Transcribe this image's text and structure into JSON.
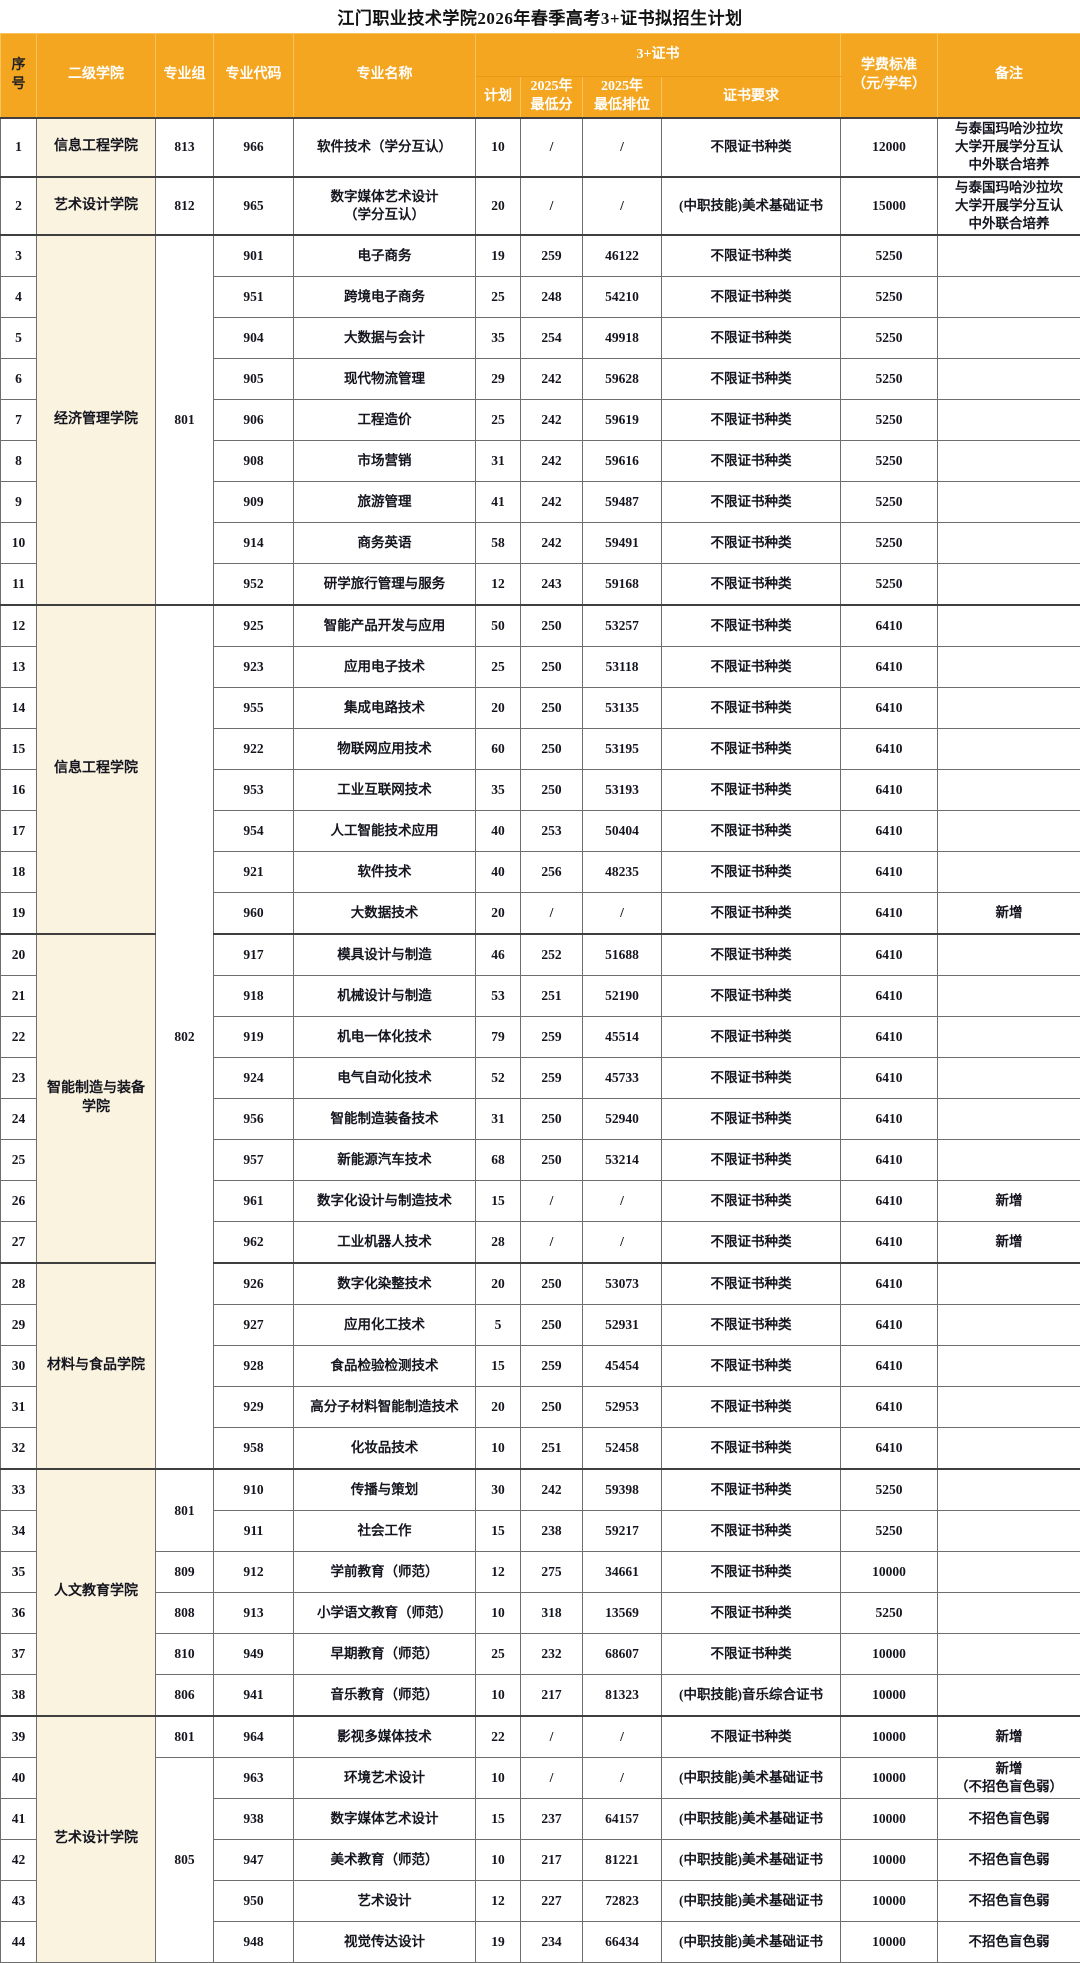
{
  "title": "江门职业技术学院2026年春季高考3+证书拟招生计划",
  "colors": {
    "header_bg": "#f4a620",
    "college_cell_bg": "#faf3e0",
    "header_text": "#ffffff",
    "body_text": "#15151f"
  },
  "table": {
    "header": {
      "seq": "序\n号",
      "college": "二级学院",
      "group": "专业组",
      "code": "专业代码",
      "name": "专业名称",
      "cert_group": "3+证书",
      "plan": "计划",
      "score": "2025年\n最低分",
      "rank": "2025年\n最低排位",
      "cert": "证书要求",
      "fee": "学费标准\n（元/学年）",
      "remark": "备注"
    },
    "rows": [
      {
        "seq": "1",
        "college": "信息工程学院",
        "cspan": 1,
        "group": "813",
        "gspan": 1,
        "code": "966",
        "name": "软件技术（学分互认）",
        "plan": "10",
        "score": "/",
        "rank": "/",
        "cert": "不限证书种类",
        "fee": "12000",
        "remark": "与泰国玛哈沙拉坎\n大学开展学分互认\n中外联合培养"
      },
      {
        "seq": "2",
        "college": "艺术设计学院",
        "cspan": 1,
        "group": "812",
        "gspan": 1,
        "code": "965",
        "name": "数字媒体艺术设计\n（学分互认）",
        "plan": "20",
        "score": "/",
        "rank": "/",
        "cert": "(中职技能)美术基础证书",
        "fee": "15000",
        "remark": "与泰国玛哈沙拉坎\n大学开展学分互认\n中外联合培养"
      },
      {
        "seq": "3",
        "college": "经济管理学院",
        "cspan": 9,
        "group": "801",
        "gspan": 9,
        "code": "901",
        "name": "电子商务",
        "plan": "19",
        "score": "259",
        "rank": "46122",
        "cert": "不限证书种类",
        "fee": "5250",
        "remark": ""
      },
      {
        "seq": "4",
        "code": "951",
        "name": "跨境电子商务",
        "plan": "25",
        "score": "248",
        "rank": "54210",
        "cert": "不限证书种类",
        "fee": "5250",
        "remark": ""
      },
      {
        "seq": "5",
        "code": "904",
        "name": "大数据与会计",
        "plan": "35",
        "score": "254",
        "rank": "49918",
        "cert": "不限证书种类",
        "fee": "5250",
        "remark": ""
      },
      {
        "seq": "6",
        "code": "905",
        "name": "现代物流管理",
        "plan": "29",
        "score": "242",
        "rank": "59628",
        "cert": "不限证书种类",
        "fee": "5250",
        "remark": ""
      },
      {
        "seq": "7",
        "code": "906",
        "name": "工程造价",
        "plan": "25",
        "score": "242",
        "rank": "59619",
        "cert": "不限证书种类",
        "fee": "5250",
        "remark": ""
      },
      {
        "seq": "8",
        "code": "908",
        "name": "市场营销",
        "plan": "31",
        "score": "242",
        "rank": "59616",
        "cert": "不限证书种类",
        "fee": "5250",
        "remark": ""
      },
      {
        "seq": "9",
        "code": "909",
        "name": "旅游管理",
        "plan": "41",
        "score": "242",
        "rank": "59487",
        "cert": "不限证书种类",
        "fee": "5250",
        "remark": ""
      },
      {
        "seq": "10",
        "code": "914",
        "name": "商务英语",
        "plan": "58",
        "score": "242",
        "rank": "59491",
        "cert": "不限证书种类",
        "fee": "5250",
        "remark": ""
      },
      {
        "seq": "11",
        "code": "952",
        "name": "研学旅行管理与服务",
        "plan": "12",
        "score": "243",
        "rank": "59168",
        "cert": "不限证书种类",
        "fee": "5250",
        "remark": ""
      },
      {
        "seq": "12",
        "college": "信息工程学院",
        "cspan": 8,
        "group": "802",
        "gspan": 21,
        "code": "925",
        "name": "智能产品开发与应用",
        "plan": "50",
        "score": "250",
        "rank": "53257",
        "cert": "不限证书种类",
        "fee": "6410",
        "remark": ""
      },
      {
        "seq": "13",
        "code": "923",
        "name": "应用电子技术",
        "plan": "25",
        "score": "250",
        "rank": "53118",
        "cert": "不限证书种类",
        "fee": "6410",
        "remark": ""
      },
      {
        "seq": "14",
        "code": "955",
        "name": "集成电路技术",
        "plan": "20",
        "score": "250",
        "rank": "53135",
        "cert": "不限证书种类",
        "fee": "6410",
        "remark": ""
      },
      {
        "seq": "15",
        "code": "922",
        "name": "物联网应用技术",
        "plan": "60",
        "score": "250",
        "rank": "53195",
        "cert": "不限证书种类",
        "fee": "6410",
        "remark": ""
      },
      {
        "seq": "16",
        "code": "953",
        "name": "工业互联网技术",
        "plan": "35",
        "score": "250",
        "rank": "53193",
        "cert": "不限证书种类",
        "fee": "6410",
        "remark": ""
      },
      {
        "seq": "17",
        "code": "954",
        "name": "人工智能技术应用",
        "plan": "40",
        "score": "253",
        "rank": "50404",
        "cert": "不限证书种类",
        "fee": "6410",
        "remark": ""
      },
      {
        "seq": "18",
        "code": "921",
        "name": "软件技术",
        "plan": "40",
        "score": "256",
        "rank": "48235",
        "cert": "不限证书种类",
        "fee": "6410",
        "remark": ""
      },
      {
        "seq": "19",
        "code": "960",
        "name": "大数据技术",
        "plan": "20",
        "score": "/",
        "rank": "/",
        "cert": "不限证书种类",
        "fee": "6410",
        "remark": "新增"
      },
      {
        "seq": "20",
        "college": "智能制造与装备\n学院",
        "cspan": 8,
        "code": "917",
        "name": "模具设计与制造",
        "plan": "46",
        "score": "252",
        "rank": "51688",
        "cert": "不限证书种类",
        "fee": "6410",
        "remark": ""
      },
      {
        "seq": "21",
        "code": "918",
        "name": "机械设计与制造",
        "plan": "53",
        "score": "251",
        "rank": "52190",
        "cert": "不限证书种类",
        "fee": "6410",
        "remark": ""
      },
      {
        "seq": "22",
        "code": "919",
        "name": "机电一体化技术",
        "plan": "79",
        "score": "259",
        "rank": "45514",
        "cert": "不限证书种类",
        "fee": "6410",
        "remark": ""
      },
      {
        "seq": "23",
        "code": "924",
        "name": "电气自动化技术",
        "plan": "52",
        "score": "259",
        "rank": "45733",
        "cert": "不限证书种类",
        "fee": "6410",
        "remark": ""
      },
      {
        "seq": "24",
        "code": "956",
        "name": "智能制造装备技术",
        "plan": "31",
        "score": "250",
        "rank": "52940",
        "cert": "不限证书种类",
        "fee": "6410",
        "remark": ""
      },
      {
        "seq": "25",
        "code": "957",
        "name": "新能源汽车技术",
        "plan": "68",
        "score": "250",
        "rank": "53214",
        "cert": "不限证书种类",
        "fee": "6410",
        "remark": ""
      },
      {
        "seq": "26",
        "code": "961",
        "name": "数字化设计与制造技术",
        "plan": "15",
        "score": "/",
        "rank": "/",
        "cert": "不限证书种类",
        "fee": "6410",
        "remark": "新增"
      },
      {
        "seq": "27",
        "code": "962",
        "name": "工业机器人技术",
        "plan": "28",
        "score": "/",
        "rank": "/",
        "cert": "不限证书种类",
        "fee": "6410",
        "remark": "新增"
      },
      {
        "seq": "28",
        "college": "材料与食品学院",
        "cspan": 5,
        "code": "926",
        "name": "数字化染整技术",
        "plan": "20",
        "score": "250",
        "rank": "53073",
        "cert": "不限证书种类",
        "fee": "6410",
        "remark": ""
      },
      {
        "seq": "29",
        "code": "927",
        "name": "应用化工技术",
        "plan": "5",
        "score": "250",
        "rank": "52931",
        "cert": "不限证书种类",
        "fee": "6410",
        "remark": ""
      },
      {
        "seq": "30",
        "code": "928",
        "name": "食品检验检测技术",
        "plan": "15",
        "score": "259",
        "rank": "45454",
        "cert": "不限证书种类",
        "fee": "6410",
        "remark": ""
      },
      {
        "seq": "31",
        "code": "929",
        "name": "高分子材料智能制造技术",
        "plan": "20",
        "score": "250",
        "rank": "52953",
        "cert": "不限证书种类",
        "fee": "6410",
        "remark": ""
      },
      {
        "seq": "32",
        "code": "958",
        "name": "化妆品技术",
        "plan": "10",
        "score": "251",
        "rank": "52458",
        "cert": "不限证书种类",
        "fee": "6410",
        "remark": ""
      },
      {
        "seq": "33",
        "college": "人文教育学院",
        "cspan": 6,
        "group": "801",
        "gspan": 2,
        "code": "910",
        "name": "传播与策划",
        "plan": "30",
        "score": "242",
        "rank": "59398",
        "cert": "不限证书种类",
        "fee": "5250",
        "remark": ""
      },
      {
        "seq": "34",
        "code": "911",
        "name": "社会工作",
        "plan": "15",
        "score": "238",
        "rank": "59217",
        "cert": "不限证书种类",
        "fee": "5250",
        "remark": ""
      },
      {
        "seq": "35",
        "group": "809",
        "gspan": 1,
        "code": "912",
        "name": "学前教育（师范）",
        "plan": "12",
        "score": "275",
        "rank": "34661",
        "cert": "不限证书种类",
        "fee": "10000",
        "remark": ""
      },
      {
        "seq": "36",
        "group": "808",
        "gspan": 1,
        "code": "913",
        "name": "小学语文教育（师范）",
        "plan": "10",
        "score": "318",
        "rank": "13569",
        "cert": "不限证书种类",
        "fee": "5250",
        "remark": ""
      },
      {
        "seq": "37",
        "group": "810",
        "gspan": 1,
        "code": "949",
        "name": "早期教育（师范）",
        "plan": "25",
        "score": "232",
        "rank": "68607",
        "cert": "不限证书种类",
        "fee": "10000",
        "remark": ""
      },
      {
        "seq": "38",
        "group": "806",
        "gspan": 1,
        "code": "941",
        "name": "音乐教育（师范）",
        "plan": "10",
        "score": "217",
        "rank": "81323",
        "cert": "(中职技能)音乐综合证书",
        "fee": "10000",
        "remark": ""
      },
      {
        "seq": "39",
        "college": "艺术设计学院",
        "cspan": 6,
        "group": "801",
        "gspan": 1,
        "code": "964",
        "name": "影视多媒体技术",
        "plan": "22",
        "score": "/",
        "rank": "/",
        "cert": "不限证书种类",
        "fee": "10000",
        "remark": "新增"
      },
      {
        "seq": "40",
        "group": "805",
        "gspan": 5,
        "code": "963",
        "name": "环境艺术设计",
        "plan": "10",
        "score": "/",
        "rank": "/",
        "cert": "(中职技能)美术基础证书",
        "fee": "10000",
        "remark": "新增\n（不招色盲色弱）"
      },
      {
        "seq": "41",
        "code": "938",
        "name": "数字媒体艺术设计",
        "plan": "15",
        "score": "237",
        "rank": "64157",
        "cert": "(中职技能)美术基础证书",
        "fee": "10000",
        "remark": "不招色盲色弱"
      },
      {
        "seq": "42",
        "code": "947",
        "name": "美术教育（师范）",
        "plan": "10",
        "score": "217",
        "rank": "81221",
        "cert": "(中职技能)美术基础证书",
        "fee": "10000",
        "remark": "不招色盲色弱"
      },
      {
        "seq": "43",
        "code": "950",
        "name": "艺术设计",
        "plan": "12",
        "score": "227",
        "rank": "72823",
        "cert": "(中职技能)美术基础证书",
        "fee": "10000",
        "remark": "不招色盲色弱"
      },
      {
        "seq": "44",
        "code": "948",
        "name": "视觉传达设计",
        "plan": "19",
        "score": "234",
        "rank": "66434",
        "cert": "(中职技能)美术基础证书",
        "fee": "10000",
        "remark": "不招色盲色弱"
      }
    ]
  }
}
